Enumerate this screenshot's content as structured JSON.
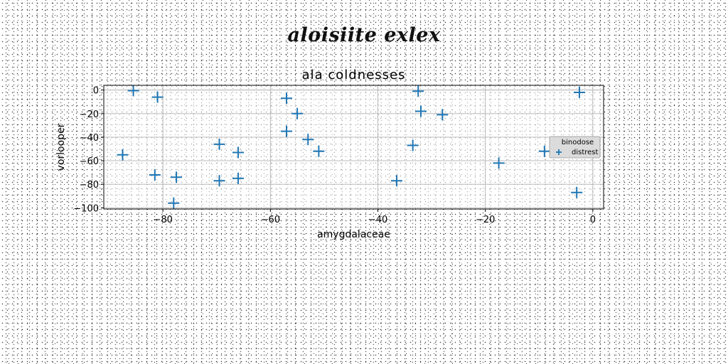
{
  "figure": {
    "title": "aloisiite exlex"
  },
  "chart_data": {
    "type": "scatter",
    "title": "ala coldnesses",
    "xlabel": "amygdalaceae",
    "ylabel": "vorlooper",
    "xlim": [
      -91,
      2
    ],
    "ylim": [
      -101,
      4
    ],
    "xticks": [
      -80,
      -60,
      -40,
      -20,
      0
    ],
    "yticks": [
      0,
      -20,
      -40,
      -60,
      -80,
      -100
    ],
    "xtick_labels": [
      "−80",
      "−60",
      "−40",
      "−20",
      "0"
    ],
    "ytick_labels": [
      "0",
      "−20",
      "−40",
      "−60",
      "−80",
      "−100"
    ],
    "grid": true,
    "legend": {
      "title": "binodose",
      "placement": "center-right"
    },
    "series": [
      {
        "name": "distrest",
        "marker": "+",
        "color": "#1f77b4",
        "points": [
          {
            "x": -85.5,
            "y": -0.5
          },
          {
            "x": -81,
            "y": -6
          },
          {
            "x": -87.5,
            "y": -55
          },
          {
            "x": -81.5,
            "y": -72
          },
          {
            "x": -77.5,
            "y": -74
          },
          {
            "x": -78,
            "y": -96
          },
          {
            "x": -69.5,
            "y": -46
          },
          {
            "x": -69.5,
            "y": -77
          },
          {
            "x": -66,
            "y": -53
          },
          {
            "x": -66,
            "y": -75
          },
          {
            "x": -57,
            "y": -7
          },
          {
            "x": -57,
            "y": -35
          },
          {
            "x": -55,
            "y": -20
          },
          {
            "x": -53,
            "y": -42
          },
          {
            "x": -51,
            "y": -52
          },
          {
            "x": -36.5,
            "y": -77
          },
          {
            "x": -33.5,
            "y": -47
          },
          {
            "x": -32.5,
            "y": -1
          },
          {
            "x": -32,
            "y": -18
          },
          {
            "x": -28,
            "y": -21
          },
          {
            "x": -17.5,
            "y": -62
          },
          {
            "x": -9,
            "y": -52
          },
          {
            "x": -2.5,
            "y": -2
          },
          {
            "x": -3,
            "y": -87
          }
        ]
      }
    ]
  }
}
